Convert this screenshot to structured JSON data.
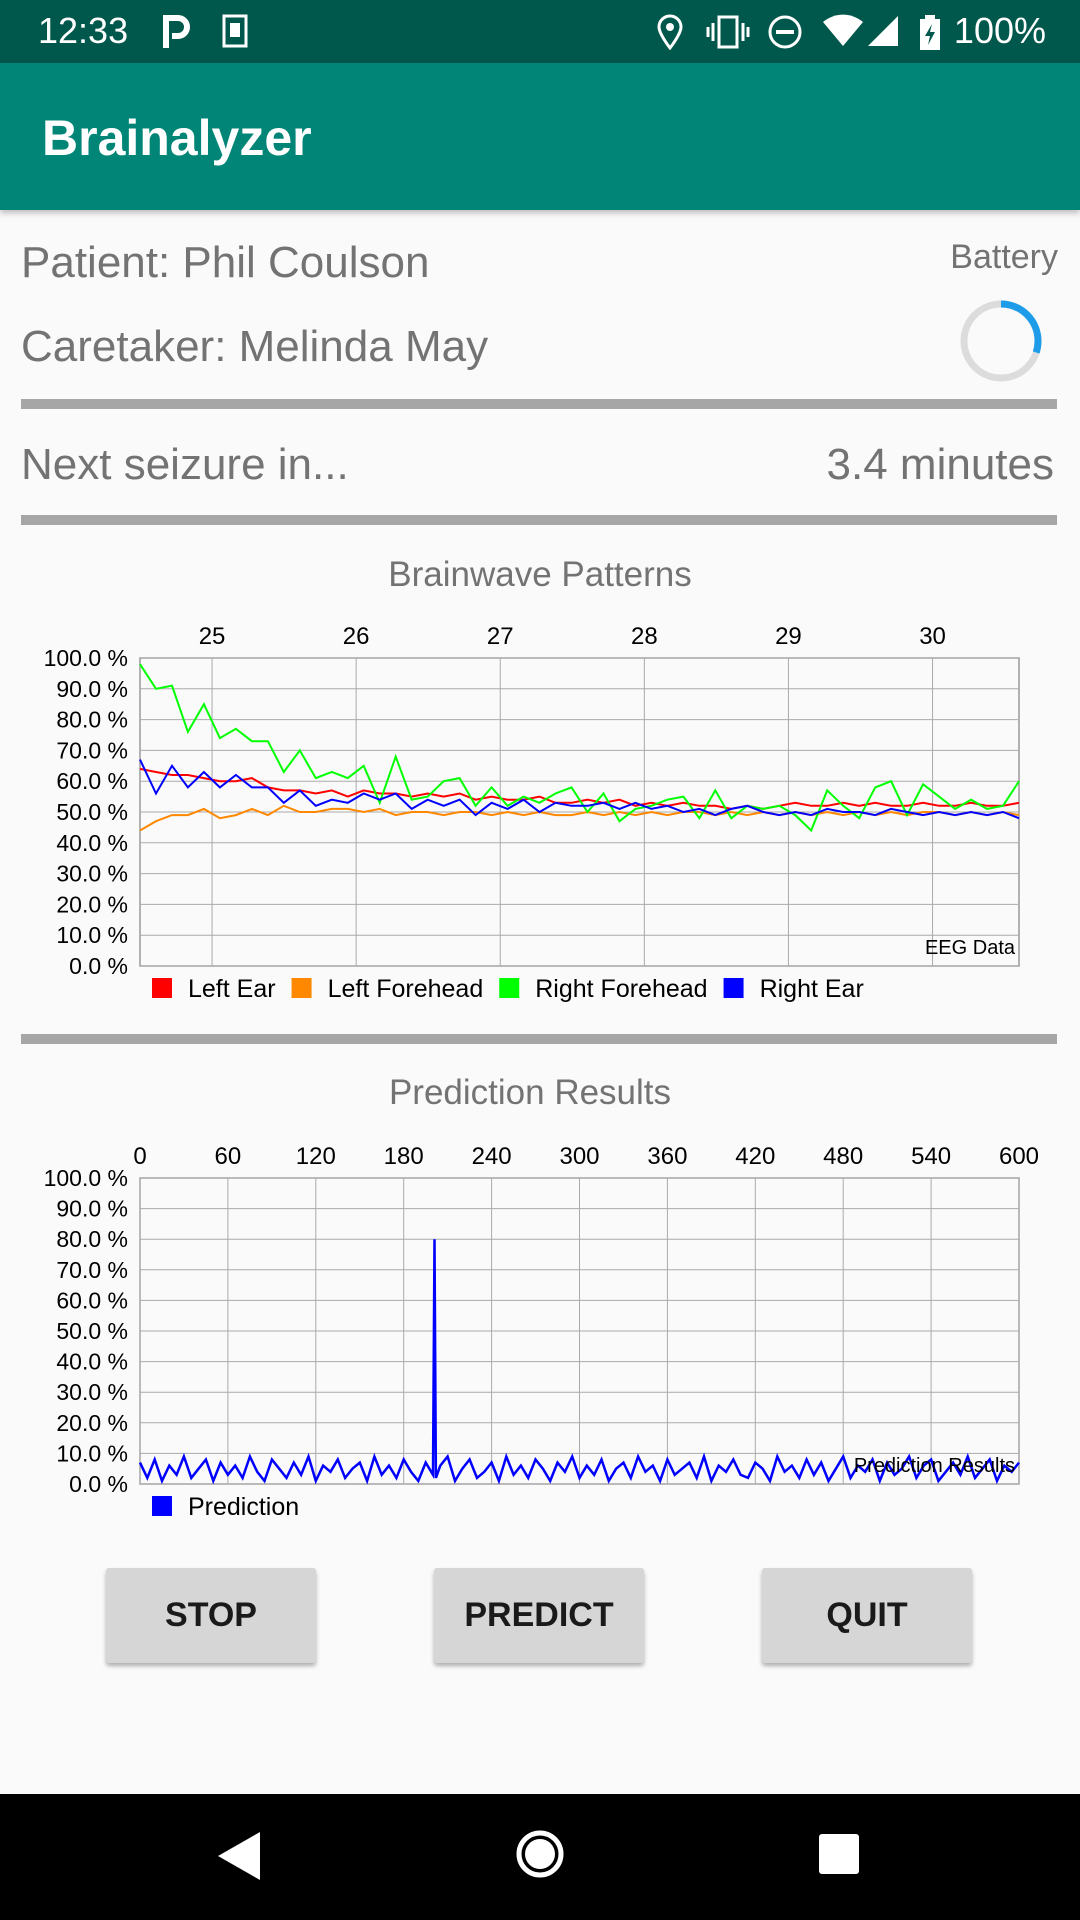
{
  "status_bar": {
    "time": "12:33",
    "battery_text": "100%",
    "left_icons": [
      "parking-icon",
      "sim-card-icon"
    ],
    "right_icons": [
      "location-icon",
      "vibrate-icon",
      "do-not-disturb-icon",
      "wifi-icon",
      "signal-icon",
      "battery-charging-icon"
    ]
  },
  "app_bar": {
    "title": "Brainalyzer"
  },
  "info": {
    "patient": "Patient: Phil Coulson",
    "caretaker": "Caretaker: Melinda May",
    "battery_label": "Battery",
    "battery_level": 0.3
  },
  "seizure": {
    "label": "Next seizure in...",
    "value": "3.4 minutes"
  },
  "chart_data": [
    {
      "type": "line",
      "title": "Brainwave Patterns",
      "description_label": "EEG Data",
      "x_ticks": [
        "25",
        "26",
        "27",
        "28",
        "29",
        "30"
      ],
      "y_ticks": [
        "100.0 %",
        "90.0 %",
        "80.0 %",
        "70.0 %",
        "60.0 %",
        "50.0 %",
        "40.0 %",
        "30.0 %",
        "20.0 %",
        "10.0 %",
        "0.0 %"
      ],
      "xlim": [
        24.5,
        30.6
      ],
      "ylim": [
        0,
        100
      ],
      "grid": true,
      "legend_position": "bottom-left",
      "series": [
        {
          "name": "Left Ear",
          "color": "#ff0000",
          "values": [
            64,
            63,
            62,
            62,
            61,
            60,
            60,
            61,
            58,
            57,
            57,
            56,
            57,
            55,
            57,
            56,
            56,
            55,
            56,
            55,
            56,
            54,
            55,
            54,
            54,
            55,
            53,
            53,
            54,
            53,
            54,
            52,
            53,
            52,
            53,
            52,
            52,
            51,
            52,
            51,
            52,
            53,
            52,
            52,
            53,
            52,
            53,
            52,
            52,
            53,
            52,
            52,
            53,
            52,
            52,
            53
          ]
        },
        {
          "name": "Left Forehead",
          "color": "#ff8800",
          "values": [
            44,
            47,
            49,
            49,
            51,
            48,
            49,
            51,
            49,
            52,
            50,
            50,
            51,
            51,
            50,
            51,
            49,
            50,
            50,
            49,
            50,
            50,
            49,
            50,
            49,
            50,
            49,
            49,
            50,
            49,
            50,
            49,
            50,
            49,
            50,
            50,
            49,
            50,
            49,
            50,
            49,
            50,
            49,
            50,
            49,
            50,
            49,
            50,
            49,
            50,
            50,
            49,
            50,
            49,
            50,
            49
          ]
        },
        {
          "name": "Right Forehead",
          "color": "#00ff00",
          "values": [
            98,
            90,
            91,
            76,
            85,
            74,
            77,
            73,
            73,
            63,
            70,
            61,
            63,
            61,
            65,
            53,
            68,
            54,
            55,
            60,
            61,
            52,
            58,
            52,
            55,
            53,
            56,
            58,
            50,
            56,
            47,
            51,
            52,
            54,
            55,
            48,
            57,
            48,
            52,
            51,
            52,
            49,
            44,
            57,
            52,
            48,
            58,
            60,
            49,
            59,
            55,
            51,
            54,
            51,
            52,
            60
          ]
        },
        {
          "name": "Right Ear",
          "color": "#0000ff",
          "values": [
            67,
            56,
            65,
            58,
            63,
            58,
            62,
            58,
            58,
            53,
            57,
            52,
            54,
            53,
            56,
            54,
            56,
            51,
            54,
            52,
            54,
            49,
            53,
            51,
            54,
            50,
            53,
            52,
            52,
            53,
            51,
            53,
            51,
            52,
            50,
            51,
            49,
            51,
            52,
            50,
            49,
            50,
            49,
            51,
            50,
            50,
            49,
            51,
            50,
            49,
            50,
            49,
            50,
            49,
            50,
            48
          ]
        }
      ]
    },
    {
      "type": "line",
      "title": "Prediction Results",
      "description_label": "Prediction Results",
      "x_ticks": [
        "0",
        "60",
        "120",
        "180",
        "240",
        "300",
        "360",
        "420",
        "480",
        "540",
        "600"
      ],
      "y_ticks": [
        "100.0 %",
        "90.0 %",
        "80.0 %",
        "70.0 %",
        "60.0 %",
        "50.0 %",
        "40.0 %",
        "30.0 %",
        "20.0 %",
        "10.0 %",
        "0.0 %"
      ],
      "xlim": [
        0,
        600
      ],
      "ylim": [
        0,
        100
      ],
      "grid": true,
      "legend_position": "bottom-left",
      "series": [
        {
          "name": "Prediction",
          "color": "#0000ff",
          "x": [
            0,
            5,
            10,
            15,
            20,
            25,
            30,
            35,
            40,
            45,
            50,
            55,
            60,
            65,
            70,
            75,
            80,
            85,
            90,
            95,
            100,
            105,
            110,
            115,
            120,
            125,
            130,
            135,
            140,
            145,
            150,
            155,
            160,
            165,
            170,
            175,
            180,
            185,
            190,
            195,
            200,
            201,
            202,
            205,
            210,
            215,
            220,
            225,
            230,
            235,
            240,
            245,
            250,
            255,
            260,
            265,
            270,
            275,
            280,
            285,
            290,
            295,
            300,
            305,
            310,
            315,
            320,
            325,
            330,
            335,
            340,
            345,
            350,
            355,
            360,
            365,
            370,
            375,
            380,
            385,
            390,
            395,
            400,
            405,
            410,
            415,
            420,
            425,
            430,
            435,
            440,
            445,
            450,
            455,
            460,
            465,
            470,
            475,
            480,
            485,
            490,
            495,
            500,
            505,
            510,
            515,
            520,
            525,
            530,
            535,
            540,
            545,
            550,
            555,
            560,
            565,
            570,
            575,
            580,
            585,
            590,
            595,
            600
          ],
          "values": [
            7,
            2,
            8,
            1,
            6,
            3,
            9,
            2,
            5,
            8,
            1,
            7,
            3,
            6,
            2,
            9,
            4,
            1,
            8,
            5,
            2,
            7,
            3,
            9,
            1,
            6,
            4,
            8,
            2,
            5,
            7,
            1,
            9,
            3,
            6,
            2,
            8,
            4,
            1,
            7,
            3,
            80,
            2,
            6,
            9,
            1,
            5,
            8,
            2,
            4,
            7,
            1,
            9,
            3,
            6,
            2,
            8,
            5,
            1,
            7,
            4,
            9,
            2,
            6,
            3,
            8,
            1,
            5,
            7,
            2,
            9,
            4,
            6,
            1,
            8,
            3,
            5,
            7,
            2,
            9,
            1,
            6,
            4,
            8,
            3,
            2,
            7,
            5,
            1,
            9,
            4,
            6,
            2,
            8,
            3,
            7,
            1,
            5,
            9,
            2,
            6,
            4,
            8,
            1,
            7,
            3,
            5,
            9,
            2,
            6,
            8,
            1,
            4,
            7,
            3,
            9,
            2,
            5,
            8,
            1,
            6,
            4,
            7
          ]
        }
      ]
    }
  ],
  "buttons": {
    "stop": "STOP",
    "predict": "PREDICT",
    "quit": "QUIT"
  },
  "nav": {
    "back": "back-icon",
    "home": "home-icon",
    "recents": "recents-icon"
  }
}
